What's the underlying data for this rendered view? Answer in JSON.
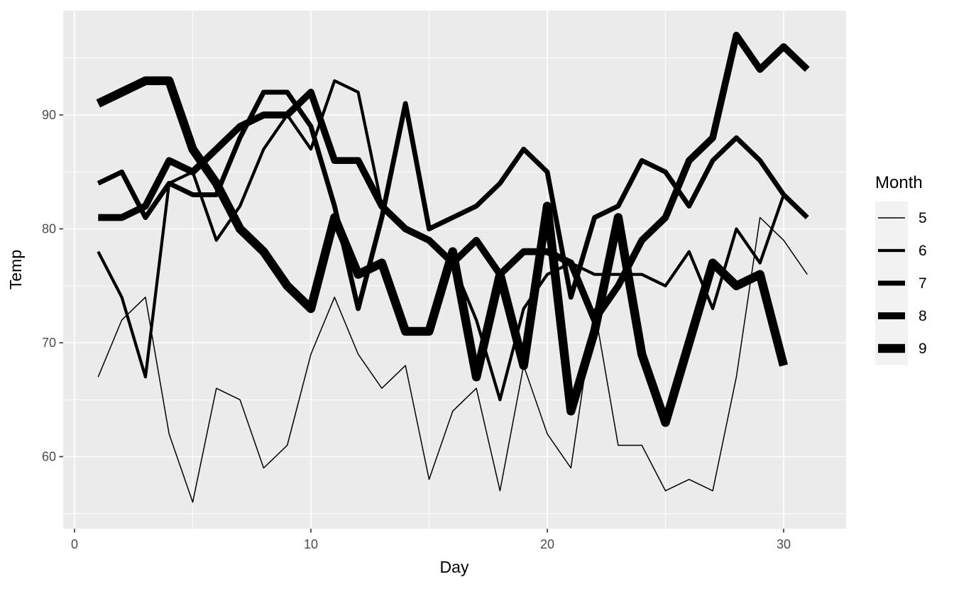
{
  "colors": {
    "background": "#FFFFFF",
    "panel_background": "#EBEBEB",
    "grid": "#FFFFFF",
    "line": "#000000",
    "tick_mark": "#333333",
    "tick_label": "#4D4D4D",
    "axis_title": "#000000",
    "legend_key_background": "#F2F2F2"
  },
  "chart_data": {
    "type": "line",
    "title": "",
    "xlabel": "Day",
    "ylabel": "Temp",
    "x_ticks": [
      0,
      10,
      20,
      30
    ],
    "y_ticks": [
      60,
      70,
      80,
      90
    ],
    "x_minor_ticks": [
      5,
      15,
      25
    ],
    "y_minor_ticks": [
      55,
      65,
      75,
      85,
      95
    ],
    "xlim": [
      -0.5,
      32.6
    ],
    "ylim": [
      53.7,
      99.2
    ],
    "grid": "white major and minor gridlines on gray panel",
    "legend": {
      "title": "Month",
      "position": "right",
      "entries": [
        {
          "label": "5",
          "line_width": 1.5
        },
        {
          "label": "6",
          "line_width": 4.2
        },
        {
          "label": "7",
          "line_width": 6.9
        },
        {
          "label": "8",
          "line_width": 9.7
        },
        {
          "label": "9",
          "line_width": 12.4
        }
      ]
    },
    "x_unit": "day of month; x values are consecutive integers starting at 1",
    "series": [
      {
        "name": "5",
        "line_width": 1.5,
        "x_first_day": 1,
        "values": [
          67,
          72,
          74,
          62,
          56,
          66,
          65,
          59,
          61,
          69,
          74,
          69,
          66,
          68,
          58,
          64,
          66,
          57,
          68,
          62,
          59,
          73,
          61,
          61,
          57,
          58,
          57,
          67,
          81,
          79,
          76
        ]
      },
      {
        "name": "6",
        "line_width": 4.2,
        "x_first_day": 1,
        "values": [
          78,
          74,
          67,
          84,
          85,
          79,
          82,
          87,
          90,
          87,
          93,
          92,
          82,
          80,
          79,
          77,
          72,
          65,
          73,
          76,
          77,
          76,
          76,
          76,
          75,
          78,
          73,
          80,
          77,
          83
        ]
      },
      {
        "name": "7",
        "line_width": 6.9,
        "x_first_day": 1,
        "values": [
          84,
          85,
          81,
          84,
          83,
          83,
          88,
          92,
          92,
          89,
          82,
          73,
          81,
          91,
          80,
          81,
          82,
          84,
          87,
          85,
          74,
          81,
          82,
          86,
          85,
          82,
          86,
          88,
          86,
          83,
          81
        ]
      },
      {
        "name": "8",
        "line_width": 9.7,
        "x_first_day": 1,
        "values": [
          81,
          81,
          82,
          86,
          85,
          87,
          89,
          90,
          90,
          92,
          86,
          86,
          82,
          80,
          79,
          77,
          79,
          76,
          78,
          78,
          77,
          72,
          75,
          79,
          81,
          86,
          88,
          97,
          94,
          96,
          94
        ]
      },
      {
        "name": "9",
        "line_width": 12.4,
        "x_first_day": 1,
        "values": [
          91,
          92,
          93,
          93,
          87,
          84,
          80,
          78,
          75,
          73,
          81,
          76,
          77,
          71,
          71,
          78,
          67,
          76,
          68,
          82,
          64,
          71,
          81,
          69,
          63,
          70,
          77,
          75,
          76,
          68
        ]
      }
    ]
  }
}
